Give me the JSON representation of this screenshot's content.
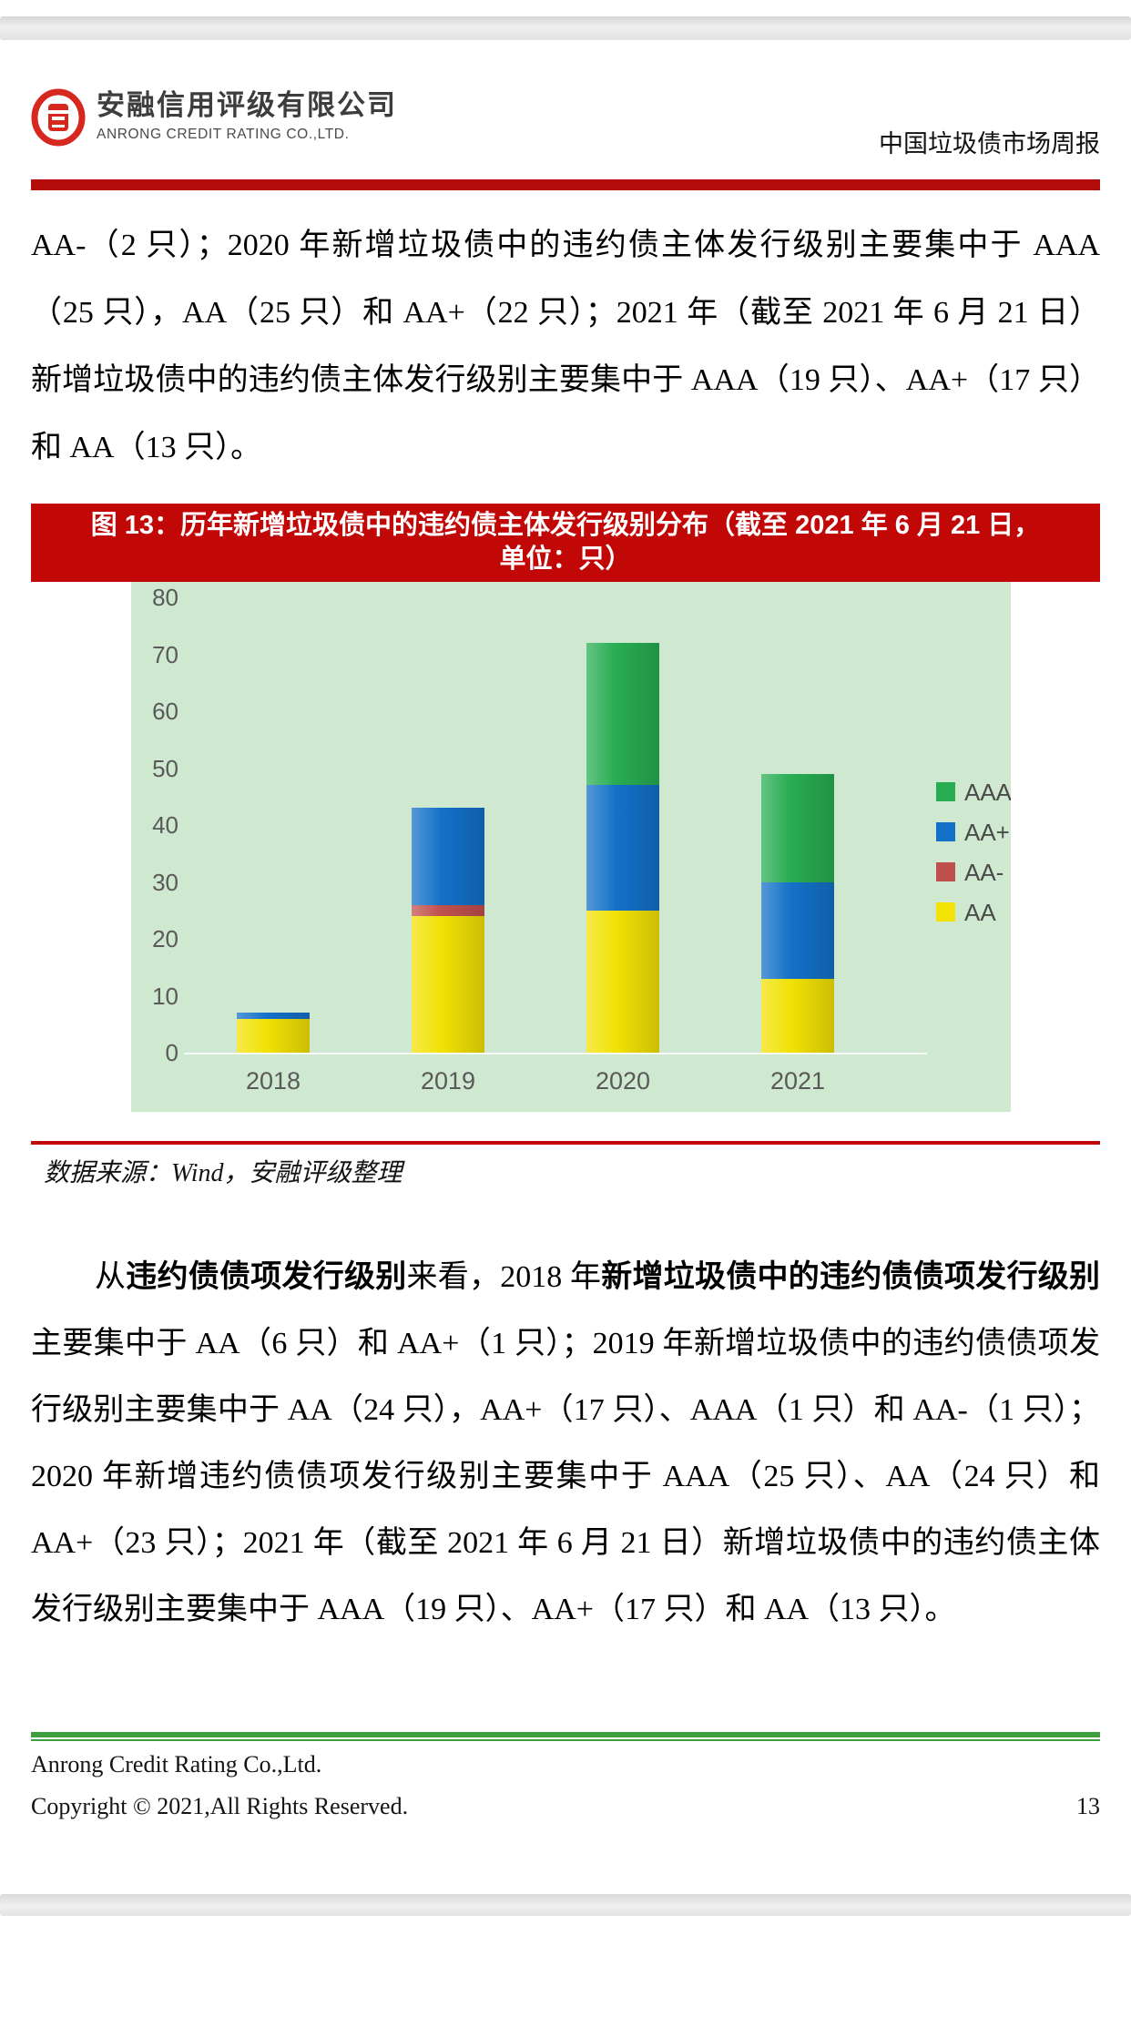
{
  "header": {
    "company_cn": "安融信用评级有限公司",
    "company_en": "ANRONG CREDIT RATING CO.,LTD.",
    "doc_title": "中国垃圾债市场周报",
    "brand_red": "#c20707"
  },
  "paragraph1": {
    "runs": [
      {
        "t": "AA-（2 只）；2020 年新增垃圾债中的违约债主体发行级别主要集中于 AAA（25 只），AA（25 只）和 AA+（22 只）；2021 年（截至 2021 年 6 月 21 日）新增垃圾债中的违约债主体发行级别主要集中于 AAA（19 只）、AA+（17 只）和 AA（13 只）。",
        "b": false
      }
    ]
  },
  "figure": {
    "title_line1": "图 13：历年新增垃圾债中的违约债主体发行级别分布（截至 2021 年 6 月 21 日，",
    "title_line2": "单位：只）",
    "source": "数据来源：Wind，安融评级整理"
  },
  "chart_data": {
    "type": "bar",
    "stacked": true,
    "title": "图 13：历年新增垃圾债中的违约债主体发行级别分布（截至 2021 年 6 月 21 日，单位：只）",
    "unit": "只",
    "xlabel": "",
    "ylabel": "",
    "categories": [
      "2018",
      "2019",
      "2020",
      "2021"
    ],
    "series": [
      {
        "name": "AA",
        "color": "#f2e205",
        "values": [
          6,
          24,
          25,
          13
        ]
      },
      {
        "name": "AA-",
        "color": "#c0504d",
        "values": [
          0,
          2,
          0,
          0
        ]
      },
      {
        "name": "AA+",
        "color": "#1471c8",
        "values": [
          1,
          17,
          22,
          17
        ]
      },
      {
        "name": "AAA",
        "color": "#28ad52",
        "values": [
          0,
          0,
          25,
          19
        ]
      }
    ],
    "totals": [
      7,
      43,
      72,
      49
    ],
    "ylim": [
      0,
      80
    ],
    "yticks": [
      0,
      10,
      20,
      30,
      40,
      50,
      60,
      70,
      80
    ],
    "grid": false,
    "legend_position": "right",
    "legend_top_to_bottom": [
      "AAA",
      "AA+",
      "AA-",
      "AA"
    ],
    "plot_bg": "#cfe8d0",
    "axis_label_color": "#595959"
  },
  "paragraph2": {
    "runs": [
      {
        "t": "从",
        "b": false
      },
      {
        "t": "违约债债项发行级别",
        "b": true
      },
      {
        "t": "来看，2018 年",
        "b": false
      },
      {
        "t": "新增垃圾债中的违约债债项发行级别",
        "b": true
      },
      {
        "t": "主要集中于 AA（6 只）和 AA+（1 只）；2019 年新增垃圾债中的违约债债项发行级别主要集中于 AA（24 只），AA+（17 只）、AAA（1 只）和 AA-（1 只）；2020 年新增违约债债项发行级别主要集中于 AAA（25 只）、AA（24 只）和 AA+（23 只）；2021 年（截至 2021 年 6 月 21 日）新增垃圾债中的违约债主体发行级别主要集中于 AAA（19 只）、AA+（17 只）和 AA（13 只）。",
        "b": false
      }
    ]
  },
  "footer": {
    "company": "Anrong Credit Rating Co.,Ltd.",
    "copyright": "Copyright © 2021,All Rights Reserved.",
    "page_number": "13",
    "rule_green": "#3f9f3f"
  }
}
